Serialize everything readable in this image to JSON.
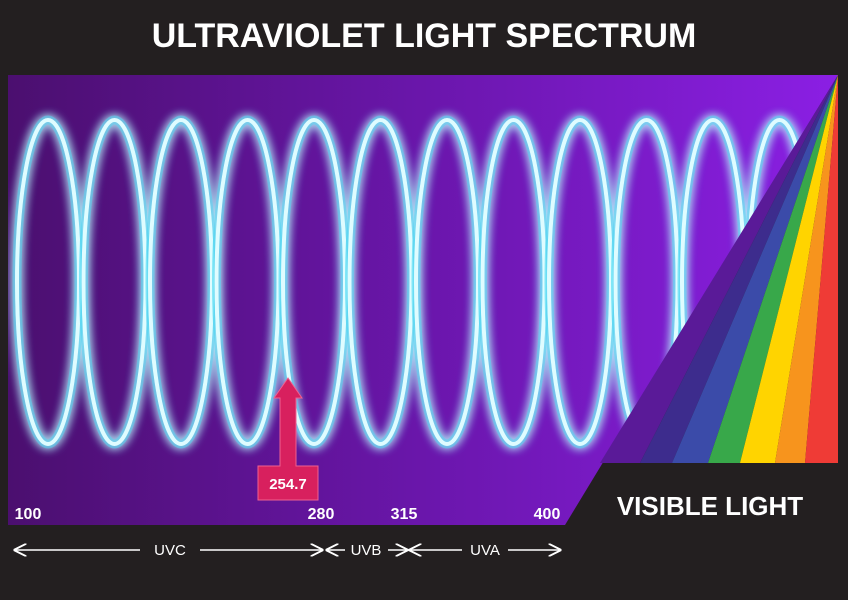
{
  "title": "ULTRAVIOLET LIGHT SPECTRUM",
  "marker": {
    "label": "254.7"
  },
  "scale": {
    "labels": [
      "100",
      "280",
      "315",
      "400"
    ]
  },
  "bands": [
    "UVC",
    "UVB",
    "UVA"
  ],
  "visible": "VISIBLE LIGHT"
}
